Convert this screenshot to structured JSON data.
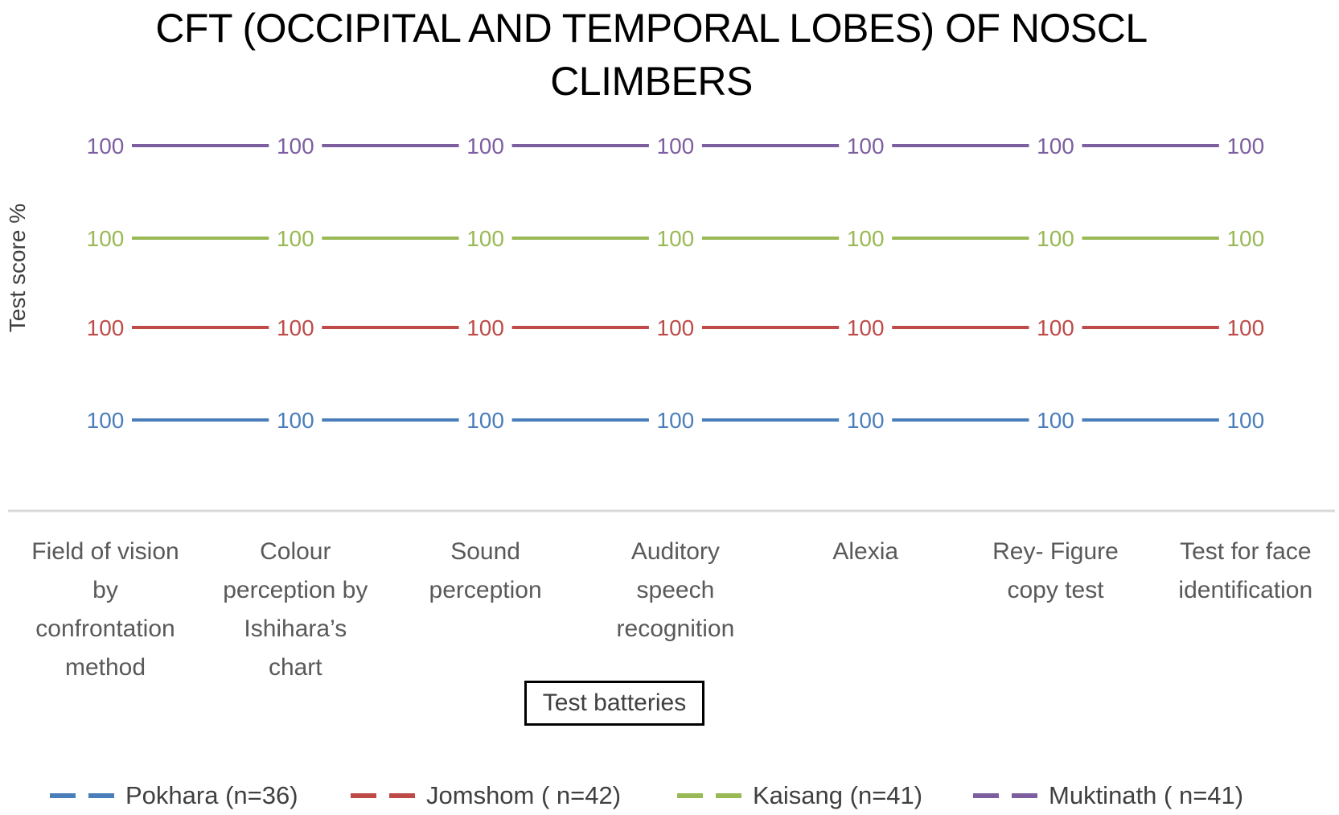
{
  "chart_data": {
    "type": "line",
    "title": "CFT (OCCIPITAL AND TEMPORAL LOBES) OF NOSCL CLIMBERS",
    "title_lines": [
      "CFT (OCCIPITAL AND TEMPORAL LOBES) OF NOSCL",
      "CLIMBERS"
    ],
    "xlabel": "Test batteries",
    "ylabel": "Test score %",
    "categories": [
      "Field of vision by confrontation method",
      "Colour perception by Ishihara’s chart",
      "Sound perception",
      "Auditory speech recognition",
      "Alexia",
      "Rey- Figure copy test",
      "Test for face identification"
    ],
    "category_lines": [
      [
        "Field of vision",
        "by",
        "confrontation",
        "method"
      ],
      [
        "Colour",
        "perception by",
        "Ishihara’s",
        "chart"
      ],
      [
        "Sound",
        "perception"
      ],
      [
        "Auditory",
        "speech",
        "recognition"
      ],
      [
        "Alexia"
      ],
      [
        "Rey- Figure",
        "copy test"
      ],
      [
        "Test for face",
        "identification"
      ]
    ],
    "series": [
      {
        "name": "Pokhara (n=36)",
        "color": "#4a7ebb",
        "values": [
          100,
          100,
          100,
          100,
          100,
          100,
          100
        ]
      },
      {
        "name": "Jomshom ( n=42)",
        "color": "#be4b48",
        "values": [
          100,
          100,
          100,
          100,
          100,
          100,
          100
        ]
      },
      {
        "name": "Kaisang (n=41)",
        "color": "#98b954",
        "values": [
          100,
          100,
          100,
          100,
          100,
          100,
          100
        ]
      },
      {
        "name": "Muktinath ( n=41)",
        "color": "#7d5fa0",
        "values": [
          100,
          100,
          100,
          100,
          100,
          100,
          100
        ]
      }
    ],
    "data_labels": true,
    "y_axis_visible": false,
    "grid": false,
    "legend_position": "bottom",
    "legend_style": "dashed"
  }
}
